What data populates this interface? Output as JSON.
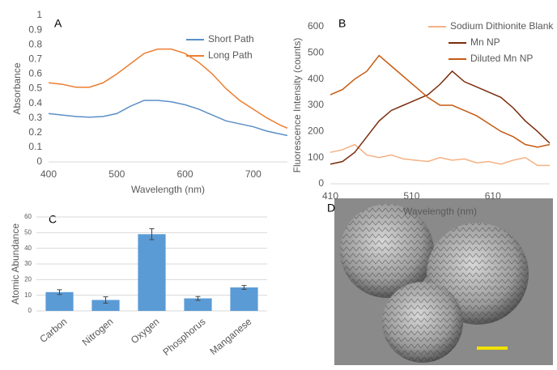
{
  "chart_data": [
    {
      "type": "line",
      "panel_label": "A",
      "xlabel": "Wavelength (nm)",
      "ylabel": "Absorbance",
      "x": [
        400,
        420,
        440,
        460,
        480,
        500,
        520,
        540,
        560,
        580,
        600,
        620,
        640,
        660,
        680,
        700,
        720,
        740,
        750
      ],
      "series": [
        {
          "name": "Short Path",
          "color": "#5b8fc7",
          "values": [
            0.33,
            0.32,
            0.31,
            0.305,
            0.31,
            0.33,
            0.38,
            0.42,
            0.42,
            0.41,
            0.39,
            0.36,
            0.32,
            0.28,
            0.26,
            0.24,
            0.21,
            0.19,
            0.18
          ]
        },
        {
          "name": "Long Path",
          "color": "#ed7d31",
          "values": [
            0.54,
            0.53,
            0.51,
            0.51,
            0.54,
            0.6,
            0.67,
            0.74,
            0.77,
            0.77,
            0.74,
            0.68,
            0.6,
            0.5,
            0.42,
            0.36,
            0.3,
            0.25,
            0.23
          ]
        }
      ],
      "xlim": [
        400,
        750
      ],
      "xticks": [
        400,
        500,
        600,
        700
      ],
      "ylim": [
        0,
        1
      ],
      "yticks": [
        0,
        0.1,
        0.2,
        0.3,
        0.4,
        0.5,
        0.6,
        0.7,
        0.8,
        0.9,
        1
      ],
      "grid": false,
      "legend": "upper right"
    },
    {
      "type": "line",
      "panel_label": "B",
      "xlabel": "Wavelength (nm)",
      "ylabel": "Fluorescence Intensity (counts)",
      "x": [
        410,
        425,
        440,
        455,
        470,
        485,
        500,
        515,
        530,
        545,
        560,
        575,
        590,
        605,
        620,
        635,
        650,
        665,
        680
      ],
      "series": [
        {
          "name": "Sodium Dithionite Blank",
          "color": "#f4b183",
          "values": [
            120,
            130,
            150,
            110,
            100,
            110,
            95,
            90,
            85,
            100,
            90,
            95,
            80,
            85,
            75,
            90,
            100,
            70,
            70
          ]
        },
        {
          "name": "Mn NP",
          "color": "#7b2c0c",
          "values": [
            75,
            85,
            120,
            180,
            240,
            280,
            300,
            320,
            340,
            380,
            430,
            390,
            370,
            350,
            330,
            290,
            240,
            200,
            155
          ]
        },
        {
          "name": "Diluted Mn NP",
          "color": "#c55a11",
          "values": [
            340,
            360,
            400,
            430,
            490,
            450,
            410,
            370,
            330,
            300,
            300,
            280,
            260,
            230,
            200,
            180,
            150,
            140,
            150
          ]
        }
      ],
      "xlim": [
        410,
        680
      ],
      "xticks": [
        410,
        510,
        610
      ],
      "ylim": [
        0,
        600
      ],
      "yticks": [
        0,
        100,
        200,
        300,
        400,
        500,
        600
      ],
      "grid": false,
      "legend": "upper right"
    },
    {
      "type": "bar",
      "panel_label": "C",
      "ylabel": "Atomic Abundance",
      "categories": [
        "Carbon",
        "Nitrogen",
        "Oxygen",
        "Phosphorus",
        "Manganese"
      ],
      "values": [
        12,
        7,
        49,
        8,
        15
      ],
      "errors": [
        1.5,
        2,
        3.5,
        1.2,
        1.2
      ],
      "color": "#5b9bd5",
      "ylim": [
        0,
        60
      ],
      "yticks": [
        0,
        10,
        20,
        30,
        40,
        50,
        60
      ],
      "grid": true
    }
  ],
  "image_panel": {
    "label": "D"
  }
}
